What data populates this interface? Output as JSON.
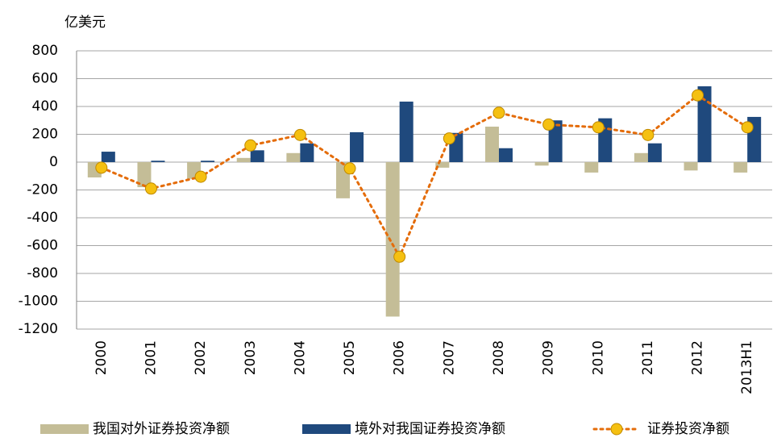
{
  "chart_data": {
    "type": "combo",
    "y_label": "亿美元",
    "categories": [
      "2000",
      "2001",
      "2002",
      "2003",
      "2004",
      "2005",
      "2006",
      "2007",
      "2008",
      "2009",
      "2010",
      "2011",
      "2012",
      "2013H1"
    ],
    "series": [
      {
        "name": "我国对外证券投资净额",
        "type": "bar",
        "color": "#c4bd97",
        "values": [
          -110,
          -180,
          -120,
          30,
          65,
          -260,
          -1110,
          -40,
          255,
          -25,
          -75,
          65,
          -60,
          -75
        ]
      },
      {
        "name": "境外对我国证券投资净额",
        "type": "bar",
        "color": "#1f497d",
        "values": [
          75,
          10,
          10,
          85,
          135,
          215,
          435,
          210,
          100,
          300,
          315,
          135,
          545,
          325
        ]
      },
      {
        "name": "证券投资净额",
        "type": "line",
        "color": "#e46c0a",
        "marker_color": "#f5c011",
        "values": [
          -40,
          -190,
          -105,
          120,
          195,
          -45,
          -680,
          170,
          355,
          270,
          250,
          195,
          480,
          250
        ]
      }
    ],
    "ylim": [
      -1200,
      800
    ],
    "yticks": [
      -1200,
      -1000,
      -800,
      -600,
      -400,
      -200,
      0,
      200,
      400,
      600,
      800
    ],
    "grid": true
  }
}
